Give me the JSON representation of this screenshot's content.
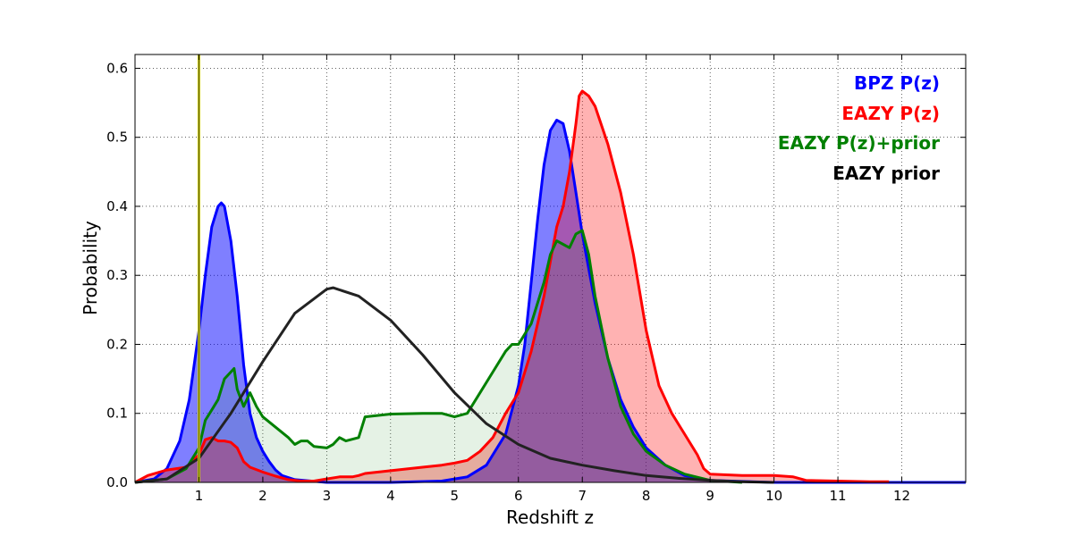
{
  "chart_data": {
    "type": "area",
    "xlabel": "Redshift z",
    "ylabel": "Probability",
    "xlim": [
      0,
      13
    ],
    "ylim": [
      0,
      0.62
    ],
    "grid": true,
    "legend_placement": "top-right",
    "x_ticks": [
      1,
      2,
      3,
      4,
      5,
      6,
      7,
      8,
      9,
      10,
      11,
      12
    ],
    "y_ticks": [
      0.0,
      0.1,
      0.2,
      0.3,
      0.4,
      0.5,
      0.6
    ],
    "x_tick_labels": [
      "1",
      "2",
      "3",
      "4",
      "5",
      "6",
      "7",
      "8",
      "9",
      "10",
      "11",
      "12"
    ],
    "y_tick_labels": [
      "0.0",
      "0.1",
      "0.2",
      "0.3",
      "0.4",
      "0.5",
      "0.6"
    ],
    "vertical_marker": {
      "x": 1.0,
      "color": "#c8c800"
    },
    "series": [
      {
        "name": "BPZ P(z)",
        "color": "#0000ff",
        "fill": "#0000ff",
        "fill_opacity": 0.5,
        "x": [
          0.0,
          0.3,
          0.5,
          0.7,
          0.85,
          1.0,
          1.1,
          1.2,
          1.3,
          1.35,
          1.4,
          1.5,
          1.6,
          1.7,
          1.8,
          1.9,
          2.0,
          2.1,
          2.2,
          2.3,
          2.5,
          3.0,
          4.0,
          4.8,
          5.2,
          5.5,
          5.8,
          6.0,
          6.1,
          6.2,
          6.3,
          6.4,
          6.5,
          6.6,
          6.7,
          6.8,
          6.9,
          7.0,
          7.2,
          7.4,
          7.6,
          7.8,
          8.0,
          8.3,
          8.6,
          9.0,
          10.0,
          13.0
        ],
        "y": [
          0.0,
          0.005,
          0.02,
          0.06,
          0.12,
          0.22,
          0.3,
          0.37,
          0.4,
          0.405,
          0.4,
          0.35,
          0.27,
          0.17,
          0.1,
          0.065,
          0.045,
          0.03,
          0.018,
          0.01,
          0.004,
          0.0,
          0.0,
          0.002,
          0.008,
          0.025,
          0.07,
          0.14,
          0.2,
          0.29,
          0.38,
          0.46,
          0.51,
          0.525,
          0.52,
          0.48,
          0.42,
          0.36,
          0.26,
          0.18,
          0.12,
          0.08,
          0.05,
          0.025,
          0.01,
          0.003,
          0.0,
          0.0
        ]
      },
      {
        "name": "EAZY P(z)",
        "color": "#ff0000",
        "fill": "#ff0000",
        "fill_opacity": 0.3,
        "x": [
          0.0,
          0.2,
          0.5,
          0.8,
          1.0,
          1.1,
          1.2,
          1.3,
          1.4,
          1.5,
          1.6,
          1.7,
          1.8,
          2.0,
          2.2,
          2.4,
          2.6,
          2.8,
          3.0,
          3.2,
          3.4,
          3.5,
          3.6,
          4.0,
          4.5,
          4.8,
          5.0,
          5.2,
          5.4,
          5.6,
          5.8,
          6.0,
          6.2,
          6.4,
          6.6,
          6.7,
          6.8,
          6.9,
          6.95,
          7.0,
          7.1,
          7.2,
          7.4,
          7.6,
          7.8,
          8.0,
          8.2,
          8.4,
          8.6,
          8.8,
          8.9,
          9.0,
          9.5,
          10.0,
          10.3,
          10.5,
          11.0,
          11.5,
          11.8
        ],
        "y": [
          0.0,
          0.01,
          0.018,
          0.022,
          0.04,
          0.062,
          0.065,
          0.06,
          0.06,
          0.058,
          0.05,
          0.03,
          0.022,
          0.015,
          0.009,
          0.004,
          0.002,
          0.002,
          0.005,
          0.008,
          0.008,
          0.01,
          0.013,
          0.017,
          0.022,
          0.025,
          0.028,
          0.032,
          0.045,
          0.065,
          0.1,
          0.13,
          0.19,
          0.27,
          0.37,
          0.4,
          0.45,
          0.52,
          0.56,
          0.567,
          0.56,
          0.545,
          0.49,
          0.42,
          0.33,
          0.22,
          0.14,
          0.1,
          0.07,
          0.04,
          0.02,
          0.012,
          0.01,
          0.01,
          0.008,
          0.003,
          0.002,
          0.001,
          0.001
        ]
      },
      {
        "name": "EAZY P(z)+prior",
        "color": "#008000",
        "fill": "#008000",
        "fill_opacity": 0.1,
        "x": [
          0.0,
          0.5,
          0.8,
          1.0,
          1.1,
          1.2,
          1.3,
          1.4,
          1.5,
          1.55,
          1.6,
          1.7,
          1.8,
          1.9,
          2.0,
          2.2,
          2.4,
          2.5,
          2.6,
          2.7,
          2.8,
          3.0,
          3.1,
          3.2,
          3.3,
          3.5,
          3.6,
          4.0,
          4.5,
          4.8,
          5.0,
          5.2,
          5.4,
          5.6,
          5.8,
          5.9,
          6.0,
          6.2,
          6.4,
          6.5,
          6.6,
          6.7,
          6.8,
          6.9,
          7.0,
          7.1,
          7.2,
          7.4,
          7.6,
          7.8,
          8.0,
          8.3,
          8.6,
          9.0,
          9.5
        ],
        "y": [
          0.0,
          0.005,
          0.02,
          0.05,
          0.09,
          0.105,
          0.12,
          0.15,
          0.16,
          0.165,
          0.135,
          0.11,
          0.13,
          0.11,
          0.095,
          0.08,
          0.065,
          0.055,
          0.06,
          0.06,
          0.052,
          0.05,
          0.055,
          0.065,
          0.06,
          0.065,
          0.095,
          0.099,
          0.1,
          0.1,
          0.095,
          0.1,
          0.13,
          0.16,
          0.19,
          0.2,
          0.2,
          0.23,
          0.29,
          0.33,
          0.35,
          0.345,
          0.34,
          0.36,
          0.365,
          0.33,
          0.27,
          0.18,
          0.11,
          0.07,
          0.045,
          0.025,
          0.012,
          0.003,
          0.0
        ]
      },
      {
        "name": "EAZY prior",
        "color": "#222222",
        "fill": null,
        "fill_opacity": 0,
        "x": [
          0.0,
          0.5,
          1.0,
          1.5,
          2.0,
          2.5,
          3.0,
          3.1,
          3.5,
          4.0,
          4.5,
          5.0,
          5.5,
          6.0,
          6.5,
          7.0,
          7.5,
          8.0,
          8.5,
          9.0,
          9.5,
          10.0
        ],
        "y": [
          0.0,
          0.005,
          0.035,
          0.1,
          0.175,
          0.245,
          0.28,
          0.282,
          0.27,
          0.235,
          0.185,
          0.13,
          0.085,
          0.055,
          0.035,
          0.025,
          0.017,
          0.01,
          0.006,
          0.003,
          0.001,
          0.0
        ]
      }
    ]
  }
}
